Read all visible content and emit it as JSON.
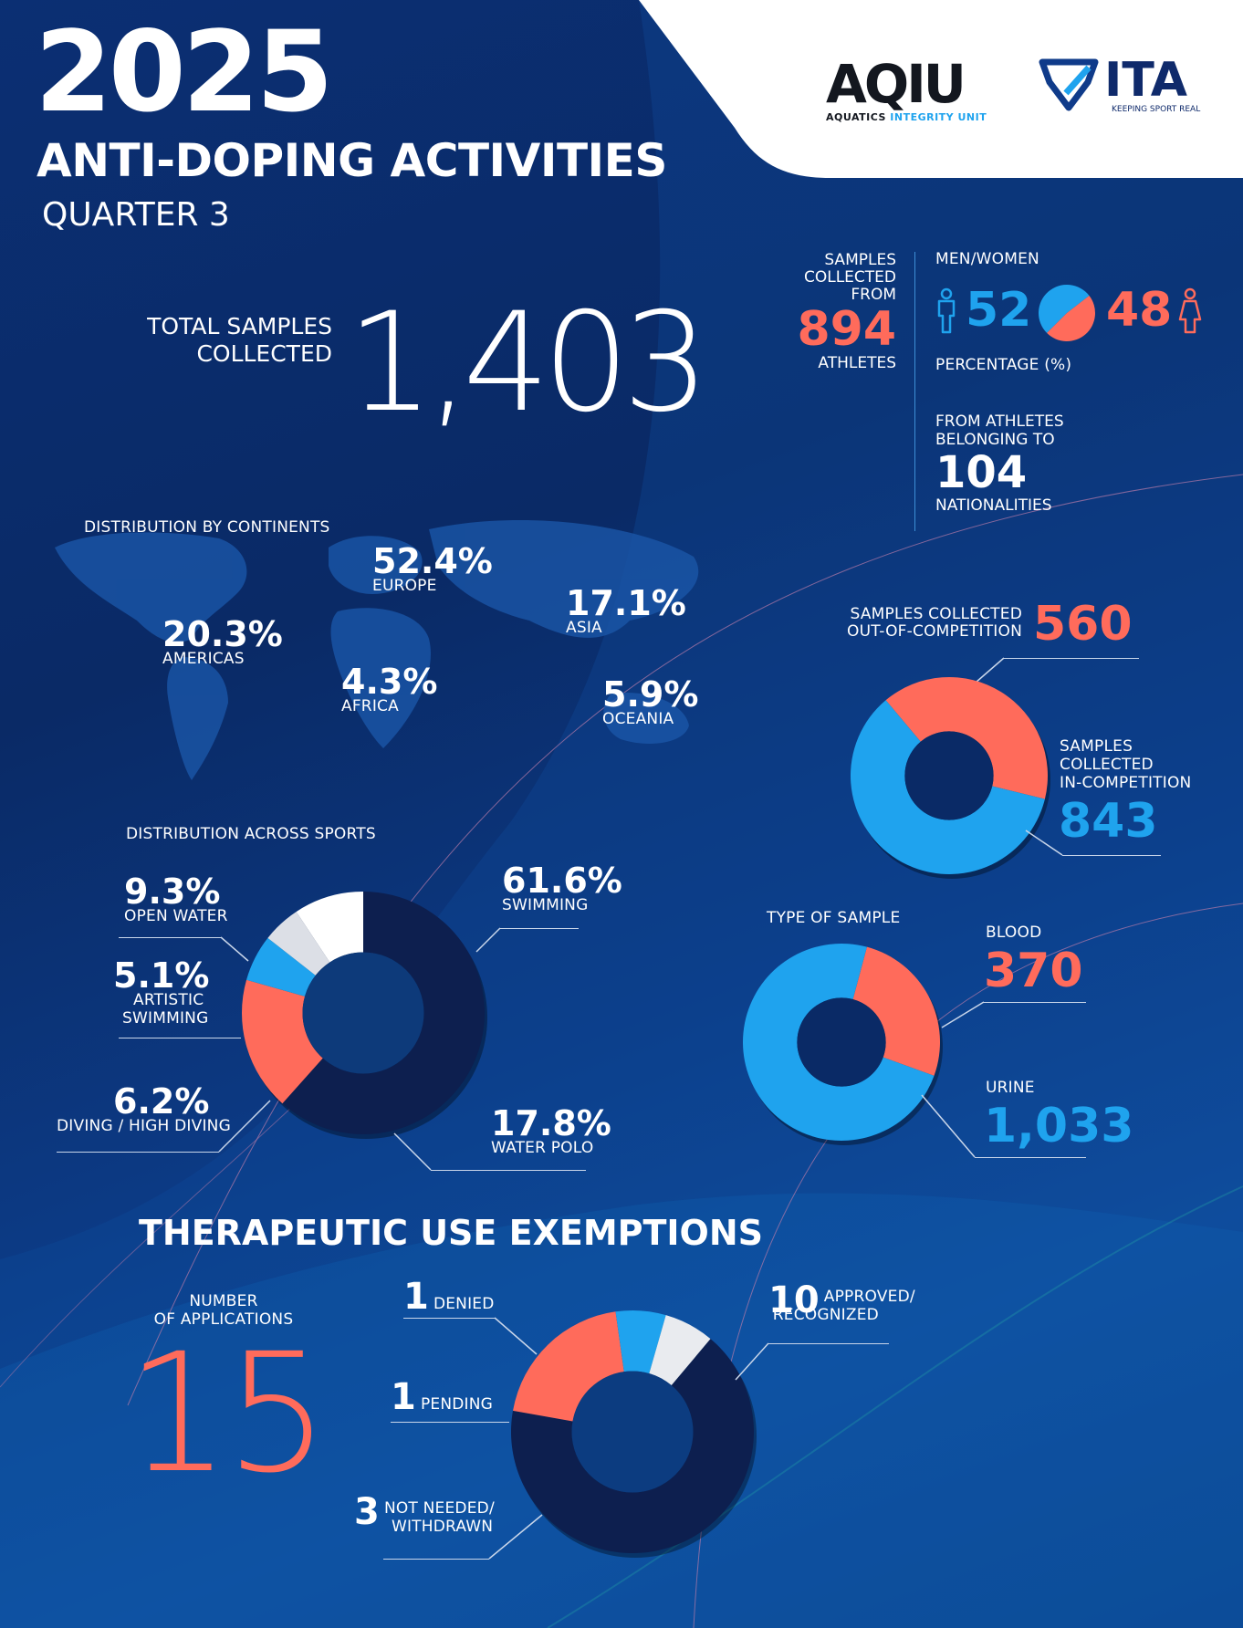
{
  "header": {
    "year": "2025",
    "title": "ANTI-DOPING ACTIVITIES",
    "subtitle": "QUARTER 3"
  },
  "logos": {
    "aqiu_mark": "AQIU",
    "aqiu_text_1": "AQUATICS",
    "aqiu_text_2": "INTEGRITY UNIT",
    "ita_mark": "ITA",
    "ita_tagline": "KEEPING SPORT REAL"
  },
  "totals": {
    "label_1": "TOTAL SAMPLES",
    "label_2": "COLLECTED",
    "value": "1,403"
  },
  "athletes": {
    "label_1": "SAMPLES",
    "label_2": "COLLECTED",
    "label_3": "FROM",
    "value": "894",
    "label_4": "ATHLETES"
  },
  "gender": {
    "title": "MEN/WOMEN",
    "men": "52",
    "women": "48",
    "unit_label": "PERCENTAGE (%)",
    "men_color": "#1fa3ee",
    "women_color": "#ff6b5b"
  },
  "nationalities": {
    "label_1": "FROM ATHLETES",
    "label_2": "BELONGING TO",
    "value": "104",
    "label_3": "NATIONALITIES"
  },
  "continents": {
    "title": "DISTRIBUTION BY CONTINENTS",
    "items": [
      {
        "value": "52.4%",
        "name": "EUROPE"
      },
      {
        "value": "20.3%",
        "name": "AMERICAS"
      },
      {
        "value": "17.1%",
        "name": "ASIA"
      },
      {
        "value": "4.3%",
        "name": "AFRICA"
      },
      {
        "value": "5.9%",
        "name": "OCEANIA"
      }
    ]
  },
  "competition": {
    "ooc_label_1": "SAMPLES COLLECTED",
    "ooc_label_2": "OUT-OF-COMPETITION",
    "ooc_value": "560",
    "ic_label_1": "SAMPLES",
    "ic_label_2": "COLLECTED",
    "ic_label_3": "IN-COMPETITION",
    "ic_value": "843"
  },
  "sports": {
    "title": "DISTRIBUTION ACROSS SPORTS",
    "items": [
      {
        "value": "9.3%",
        "name": "OPEN WATER"
      },
      {
        "value": "5.1%",
        "name_1": "ARTISTIC",
        "name_2": "SWIMMING"
      },
      {
        "value": "6.2%",
        "name": "DIVING / HIGH DIVING"
      },
      {
        "value": "61.6%",
        "name": "SWIMMING"
      },
      {
        "value": "17.8%",
        "name": "WATER POLO"
      }
    ]
  },
  "sample_type": {
    "title": "TYPE OF SAMPLE",
    "blood_label": "BLOOD",
    "blood_value": "370",
    "urine_label": "URINE",
    "urine_value": "1,033"
  },
  "tue": {
    "title": "THERAPEUTIC USE EXEMPTIONS",
    "apps_label_1": "NUMBER",
    "apps_label_2": "OF APPLICATIONS",
    "apps_value": "15",
    "denied_value": "1",
    "denied_label": "DENIED",
    "pending_value": "1",
    "pending_label": "PENDING",
    "not_needed_value": "3",
    "not_needed_label_1": "NOT NEEDED/",
    "not_needed_label_2": "WITHDRAWN",
    "approved_value": "10",
    "approved_label_1": "APPROVED/",
    "approved_label_2": "RECOGNIZED"
  },
  "chart_data": [
    {
      "type": "pie",
      "name": "gender",
      "categories": [
        "MEN",
        "WOMEN"
      ],
      "values": [
        52,
        48
      ],
      "colors": [
        "#1fa3ee",
        "#ff6b5b"
      ]
    },
    {
      "type": "pie",
      "name": "competition",
      "categories": [
        "OUT-OF-COMPETITION",
        "IN-COMPETITION"
      ],
      "values": [
        560,
        843
      ],
      "colors": [
        "#ff6b5b",
        "#1fa3ee"
      ]
    },
    {
      "type": "pie",
      "name": "sports",
      "categories": [
        "SWIMMING",
        "WATER POLO",
        "DIVING / HIGH DIVING",
        "ARTISTIC SWIMMING",
        "OPEN WATER"
      ],
      "values": [
        61.6,
        17.8,
        6.2,
        5.1,
        9.3
      ],
      "colors": [
        "#0d1f4f",
        "#ff6b5b",
        "#1fa3ee",
        "#dcdfe6",
        "#ffffff"
      ]
    },
    {
      "type": "pie",
      "name": "sample_type",
      "categories": [
        "BLOOD",
        "URINE"
      ],
      "values": [
        370,
        1033
      ],
      "colors": [
        "#ff6b5b",
        "#1fa3ee"
      ]
    },
    {
      "type": "pie",
      "name": "tue",
      "categories": [
        "APPROVED/RECOGNIZED",
        "NOT NEEDED/WITHDRAWN",
        "PENDING",
        "DENIED"
      ],
      "values": [
        10,
        3,
        1,
        1
      ],
      "colors": [
        "#0d1f4f",
        "#ff6b5b",
        "#1fa3ee",
        "#e9ebef"
      ]
    }
  ]
}
